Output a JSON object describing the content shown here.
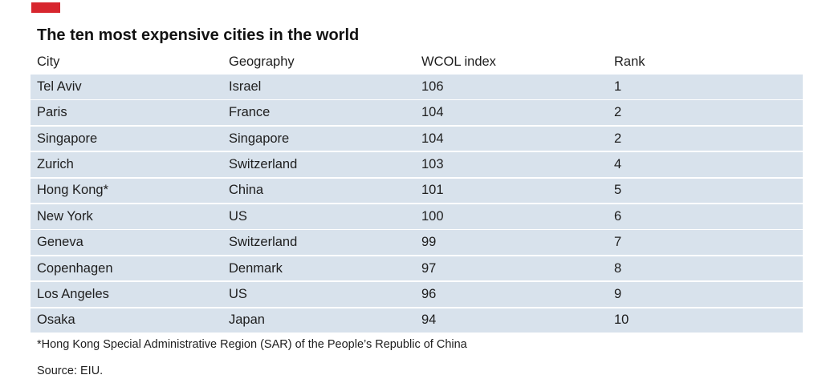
{
  "accent_color": "#d7262e",
  "row_color": "#d8e2ec",
  "chart_data": {
    "type": "table",
    "title": "The ten most expensive cities in the world",
    "columns": [
      "City",
      "Geography",
      "WCOL index",
      "Rank"
    ],
    "rows": [
      [
        "Tel Aviv",
        "Israel",
        "106",
        "1"
      ],
      [
        "Paris",
        "France",
        "104",
        "2"
      ],
      [
        "Singapore",
        "Singapore",
        "104",
        "2"
      ],
      [
        "Zurich",
        "Switzerland",
        "103",
        "4"
      ],
      [
        "Hong Kong*",
        "China",
        "101",
        "5"
      ],
      [
        "New York",
        "US",
        "100",
        "6"
      ],
      [
        "Geneva",
        "Switzerland",
        "99",
        "7"
      ],
      [
        "Copenhagen",
        "Denmark",
        "97",
        "8"
      ],
      [
        "Los Angeles",
        "US",
        "96",
        "9"
      ],
      [
        "Osaka",
        "Japan",
        "94",
        "10"
      ]
    ],
    "footnote": "*Hong Kong Special Administrative Region (SAR) of the People’s Republic of China",
    "source": "Source: EIU."
  }
}
